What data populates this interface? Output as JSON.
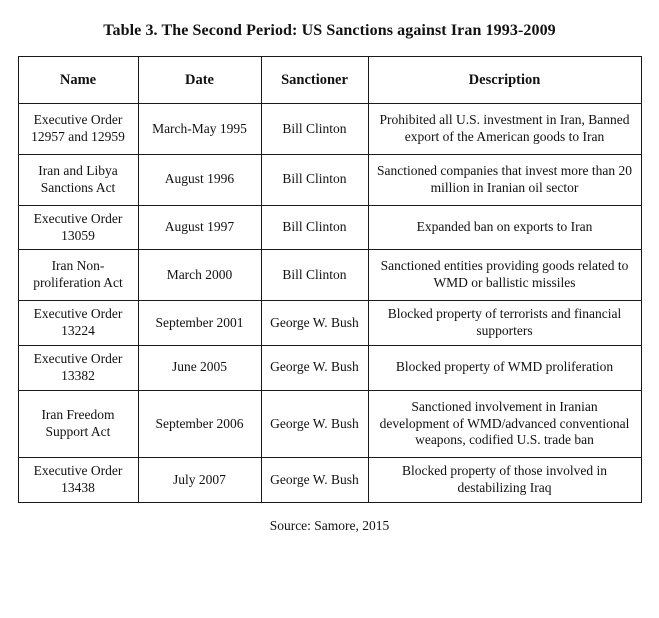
{
  "page": {
    "title": "Table 3. The Second Period: US Sanctions against Iran 1993-2009",
    "source": "Source: Samore, 2015"
  },
  "colors": {
    "text": "#111111",
    "border": "#1a1a1a",
    "background": "#ffffff"
  },
  "table": {
    "headers": {
      "name": "Name",
      "date": "Date",
      "sanctioner": "Sanctioner",
      "description": "Description"
    },
    "rows": [
      {
        "name": "Executive Order 12957 and 12959",
        "date": "March-May 1995",
        "sanctioner": "Bill Clinton",
        "description": "Prohibited all U.S. investment in Iran, Banned export of the American goods to Iran"
      },
      {
        "name": "Iran and Libya Sanctions Act",
        "date": "August 1996",
        "sanctioner": "Bill Clinton",
        "description": "Sanctioned companies that invest more than 20 million in Iranian oil sector"
      },
      {
        "name": "Executive Order 13059",
        "date": "August 1997",
        "sanctioner": "Bill Clinton",
        "description": "Expanded ban on exports to Iran"
      },
      {
        "name": "Iran Non-proliferation Act",
        "date": "March 2000",
        "sanctioner": "Bill Clinton",
        "description": "Sanctioned entities providing goods related to WMD or ballistic missiles"
      },
      {
        "name": "Executive Order 13224",
        "date": "September 2001",
        "sanctioner": "George W. Bush",
        "description": "Blocked property of terrorists and financial supporters"
      },
      {
        "name": "Executive Order 13382",
        "date": "June 2005",
        "sanctioner": "George W. Bush",
        "description": "Blocked property of WMD proliferation"
      },
      {
        "name": "Iran Freedom Support Act",
        "date": "September 2006",
        "sanctioner": "George W. Bush",
        "description": "Sanctioned involvement in Iranian development of WMD/advanced conventional weapons, codified U.S. trade ban"
      },
      {
        "name": "Executive Order 13438",
        "date": "July 2007",
        "sanctioner": "George W. Bush",
        "description": "Blocked property of those involved in destabilizing Iraq"
      }
    ]
  }
}
